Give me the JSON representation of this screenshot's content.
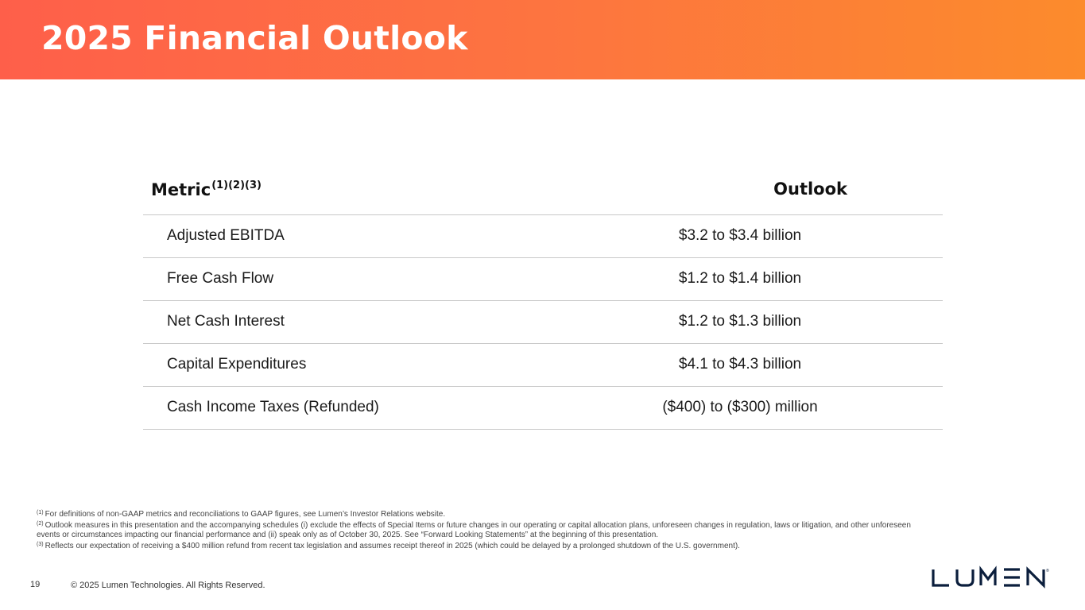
{
  "header": {
    "title": "2025 Financial Outlook"
  },
  "table": {
    "metric_header": "Metric",
    "metric_header_notes": "(1)(2)(3)",
    "outlook_header": "Outlook",
    "rows": [
      {
        "metric": "Adjusted EBITDA",
        "outlook": "$3.2 to $3.4 billion"
      },
      {
        "metric": "Free Cash Flow",
        "outlook": "$1.2 to $1.4 billion"
      },
      {
        "metric": "Net Cash Interest",
        "outlook": "$1.2 to $1.3 billion"
      },
      {
        "metric": "Capital Expenditures",
        "outlook": "$4.1 to $4.3 billion"
      },
      {
        "metric": "Cash Income Taxes (Refunded)",
        "outlook": "($400) to ($300) million"
      }
    ]
  },
  "footnotes": [
    {
      "mark": "(1)",
      "text": "For definitions of non-GAAP metrics and reconciliations to GAAP figures, see Lumen’s Investor Relations website."
    },
    {
      "mark": "(2)",
      "text": "Outlook measures in this presentation and the accompanying schedules (i) exclude the effects of Special Items or future changes in our operating or capital allocation plans, unforeseen changes in regulation, laws or litigation, and other unforeseen events or circumstances impacting our financial performance and (ii) speak only as of October 30, 2025. See “Forward Looking Statements” at the beginning of this presentation."
    },
    {
      "mark": "(3)",
      "text": "Reflects our expectation of receiving a $400 million refund from recent tax legislation and assumes receipt thereof in 2025 (which could be delayed by a prolonged shutdown of the U.S. government)."
    }
  ],
  "footer": {
    "page_number": "19",
    "copyright": "© 2025 Lumen Technologies. All Rights Reserved.",
    "logo_text": "LUMEN"
  }
}
